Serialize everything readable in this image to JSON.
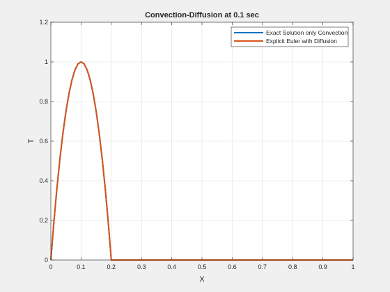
{
  "chart_data": {
    "type": "line",
    "title": "Convection-Diffusion at 0.1 sec",
    "xlabel": "X",
    "ylabel": "T",
    "xlim": [
      0,
      1
    ],
    "ylim": [
      0,
      1.2
    ],
    "xticks": [
      0,
      0.1,
      0.2,
      0.3,
      0.4,
      0.5,
      0.6,
      0.7,
      0.8,
      0.9,
      1
    ],
    "xtick_labels": [
      "0",
      "0.1",
      "0.2",
      "0.3",
      "0.4",
      "0.5",
      "0.6",
      "0.7",
      "0.8",
      "0.9",
      "1"
    ],
    "yticks": [
      0,
      0.2,
      0.4,
      0.6,
      0.8,
      1,
      1.2
    ],
    "ytick_labels": [
      "0",
      "0.2",
      "0.4",
      "0.6",
      "0.8",
      "1",
      "1.2"
    ],
    "grid": true,
    "legend_position": "top-right",
    "series": [
      {
        "name": "Exact Solution only Convection",
        "color": "#0072bd",
        "x": [
          0,
          0.01,
          0.02,
          0.03,
          0.04,
          0.05,
          0.06,
          0.07,
          0.08,
          0.09,
          0.1,
          0.11,
          0.12,
          0.13,
          0.14,
          0.15,
          0.16,
          0.17,
          0.18,
          0.19,
          0.2,
          0.3,
          0.4,
          0.5,
          0.6,
          0.7,
          0.8,
          0.9,
          1.0
        ],
        "y": [
          0,
          0.19,
          0.36,
          0.51,
          0.64,
          0.75,
          0.84,
          0.91,
          0.96,
          0.99,
          1.0,
          0.99,
          0.96,
          0.91,
          0.84,
          0.75,
          0.64,
          0.51,
          0.36,
          0.19,
          0,
          0,
          0,
          0,
          0,
          0,
          0,
          0,
          0
        ]
      },
      {
        "name": "Explicit Euler with Diffusion",
        "color": "#d95319",
        "x": [
          0,
          0.01,
          0.02,
          0.03,
          0.04,
          0.05,
          0.06,
          0.07,
          0.08,
          0.09,
          0.1,
          0.11,
          0.12,
          0.13,
          0.14,
          0.15,
          0.16,
          0.17,
          0.18,
          0.19,
          0.2,
          0.3,
          0.4,
          0.5,
          0.6,
          0.7,
          0.8,
          0.9,
          1.0
        ],
        "y": [
          0,
          0.19,
          0.36,
          0.51,
          0.64,
          0.75,
          0.84,
          0.91,
          0.96,
          0.99,
          1.0,
          0.99,
          0.96,
          0.91,
          0.84,
          0.75,
          0.64,
          0.51,
          0.36,
          0.19,
          0,
          0,
          0,
          0,
          0,
          0,
          0,
          0,
          0
        ]
      }
    ]
  }
}
